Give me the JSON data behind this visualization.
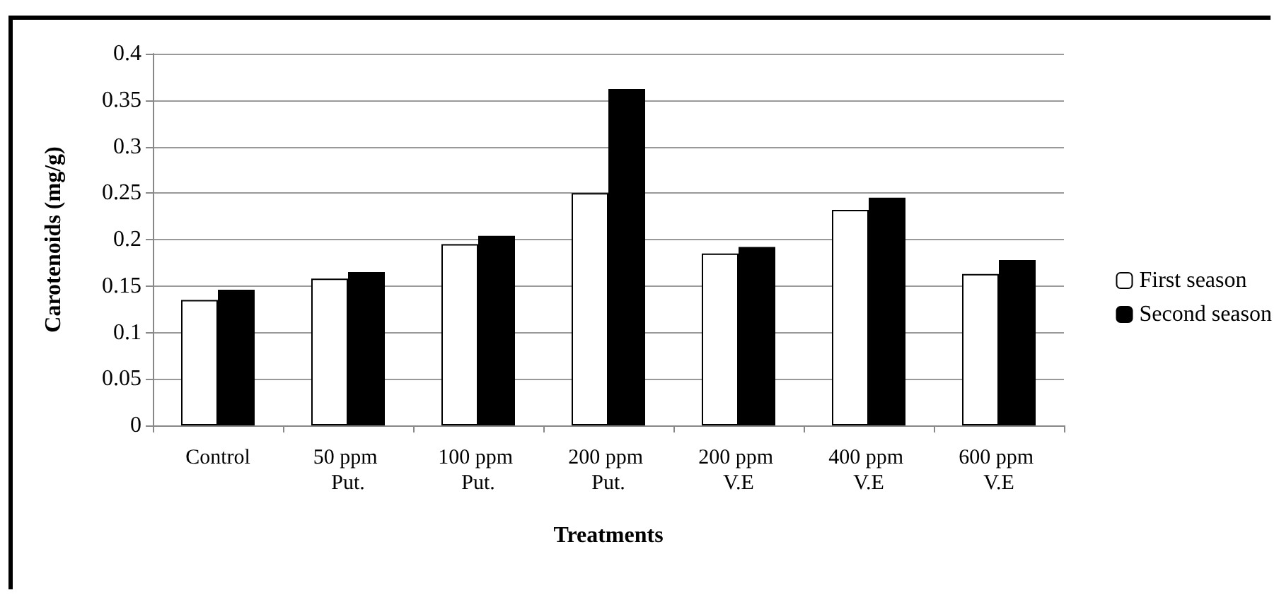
{
  "chart_data": {
    "type": "bar",
    "xlabel": "Treatments",
    "ylabel": "Carotenoids (mg/g)",
    "categories": [
      "Control",
      "50 ppm Put.",
      "100 ppm Put.",
      "200 ppm Put.",
      "200 ppm V.E",
      "400 ppm V.E",
      "600 ppm V.E"
    ],
    "series": [
      {
        "name": "First season",
        "color": "#ffffff",
        "values": [
          0.135,
          0.158,
          0.195,
          0.25,
          0.185,
          0.232,
          0.163
        ]
      },
      {
        "name": "Second season",
        "color": "#000000",
        "values": [
          0.146,
          0.165,
          0.204,
          0.362,
          0.192,
          0.245,
          0.178
        ]
      }
    ],
    "ylim": [
      0,
      0.4
    ],
    "yticks": [
      0,
      0.05,
      0.1,
      0.15,
      0.2,
      0.25,
      0.3,
      0.35,
      0.4
    ],
    "grid": "y",
    "legend": "right"
  }
}
